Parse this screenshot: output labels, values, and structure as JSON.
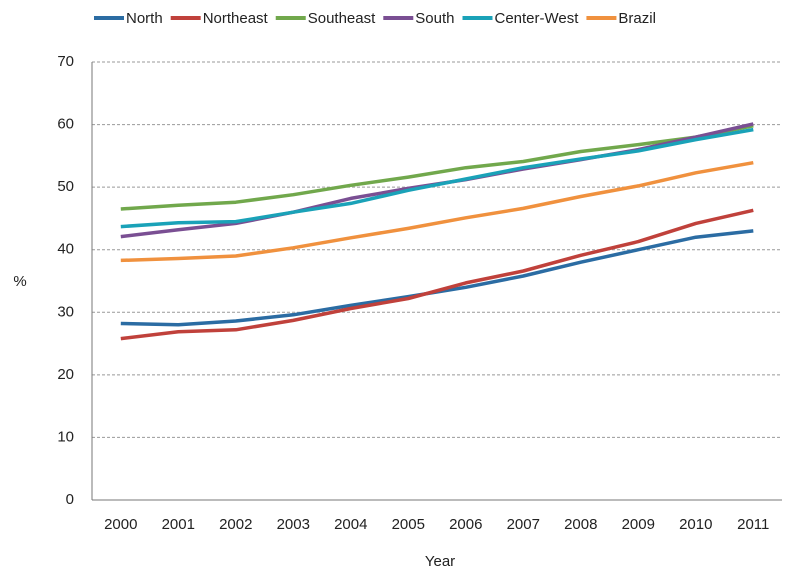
{
  "chart_data": {
    "type": "line",
    "x_label": "Year",
    "y_label": "%",
    "categories": [
      "2000",
      "2001",
      "2002",
      "2003",
      "2004",
      "2005",
      "2006",
      "2007",
      "2008",
      "2009",
      "2010",
      "2011"
    ],
    "series": [
      {
        "name": "North",
        "color": "#2b6ca3",
        "values": [
          28.2,
          28.0,
          28.6,
          29.6,
          31.1,
          32.5,
          34.0,
          35.8,
          38.0,
          40.0,
          42.0,
          43.0
        ]
      },
      {
        "name": "Northeast",
        "color": "#c0413b",
        "values": [
          25.8,
          26.9,
          27.2,
          28.7,
          30.6,
          32.2,
          34.7,
          36.6,
          39.1,
          41.3,
          44.2,
          46.3
        ]
      },
      {
        "name": "Southeast",
        "color": "#71a84c",
        "values": [
          46.5,
          47.1,
          47.6,
          48.8,
          50.3,
          51.6,
          53.1,
          54.1,
          55.7,
          56.8,
          58.0,
          59.8
        ]
      },
      {
        "name": "South",
        "color": "#7a4f93",
        "values": [
          42.1,
          43.2,
          44.2,
          46.0,
          48.2,
          49.8,
          51.2,
          52.9,
          54.4,
          56.0,
          58.0,
          60.1
        ]
      },
      {
        "name": "Center-West",
        "color": "#1aa2b8",
        "values": [
          43.7,
          44.3,
          44.5,
          46.0,
          47.4,
          49.5,
          51.3,
          53.1,
          54.5,
          55.8,
          57.6,
          59.2
        ]
      },
      {
        "name": "Brazil",
        "color": "#f0913e",
        "values": [
          38.3,
          38.6,
          39.0,
          40.3,
          41.9,
          43.4,
          45.1,
          46.6,
          48.5,
          50.2,
          52.3,
          53.9
        ]
      }
    ],
    "ylim": [
      0,
      70
    ],
    "yticks": [
      0,
      10,
      20,
      30,
      40,
      50,
      60,
      70
    ],
    "grid": true
  }
}
